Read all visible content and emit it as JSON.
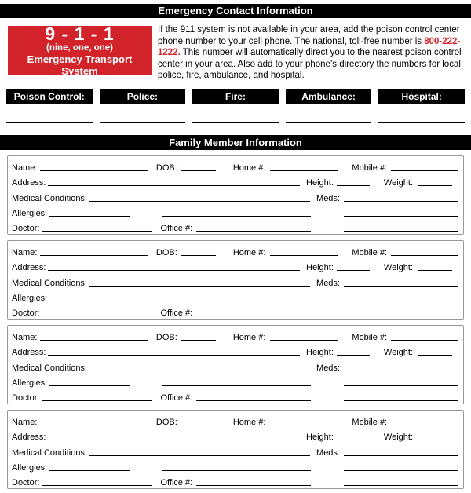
{
  "header": {
    "title": "Emergency Contact Information"
  },
  "emergency_911": {
    "number_display": "9 - 1 - 1",
    "pronunciation": "(nine, one, one)",
    "system_name": "Emergency Transport System",
    "bg_color": "#d2232a"
  },
  "poison_info": {
    "text_before": "If the 911 system is not available in your area, add the poison control center phone number to your cell phone. The national, toll-free number is ",
    "phone_number": "800-222-1222.",
    "text_after": " This number will automatically direct you to the nearest poison control center in your area. Also add to your phone’s directory the numbers for local police, fire, ambulance, and hospital.",
    "phone_color": "#d2232a"
  },
  "emergency_contacts": {
    "labels": [
      "Poison Control:",
      "Police:",
      "Fire:",
      "Ambulance:",
      "Hospital:"
    ]
  },
  "family_section": {
    "title": "Family Member Information",
    "member_count": 4,
    "field_labels": {
      "name": "Name:",
      "dob": "DOB:",
      "home_phone": "Home #:",
      "mobile_phone": "Mobile #:",
      "address": "Address:",
      "height": "Height:",
      "weight": "Weight:",
      "medical_conditions": "Medical Conditions:",
      "meds": "Meds:",
      "allergies": "Allergies:",
      "doctor": "Doctor:",
      "office_phone": "Office #:"
    }
  }
}
